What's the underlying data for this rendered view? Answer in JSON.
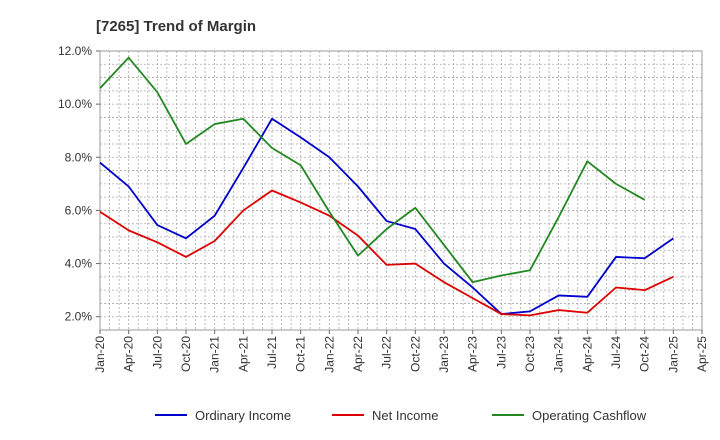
{
  "chart_data": {
    "type": "line",
    "title": "[7265]  Trend of Margin",
    "xlabel": "",
    "ylabel": "",
    "ylim": [
      1.5,
      12.0
    ],
    "yticks": [
      2.0,
      4.0,
      6.0,
      8.0,
      10.0,
      12.0
    ],
    "ytick_labels": [
      "2.0%",
      "4.0%",
      "6.0%",
      "8.0%",
      "10.0%",
      "12.0%"
    ],
    "grid": true,
    "legend_position": "bottom",
    "x": [
      "Jan-20",
      "Apr-20",
      "Jul-20",
      "Oct-20",
      "Jan-21",
      "Apr-21",
      "Jul-21",
      "Oct-21",
      "Jan-22",
      "Apr-22",
      "Jul-22",
      "Oct-22",
      "Jan-23",
      "Apr-23",
      "Jul-23",
      "Oct-23",
      "Jan-24",
      "Apr-24",
      "Jul-24",
      "Oct-24",
      "Jan-25",
      "Apr-25"
    ],
    "series": [
      {
        "name": "Ordinary Income",
        "color": "#0000cc",
        "values": [
          7.8,
          6.9,
          5.45,
          4.95,
          5.8,
          7.6,
          9.45,
          8.75,
          8.0,
          6.9,
          5.6,
          5.3,
          4.0,
          3.1,
          2.1,
          2.2,
          2.8,
          2.75,
          4.25,
          4.2,
          4.95,
          null
        ]
      },
      {
        "name": "Net Income",
        "color": "#dd0000",
        "values": [
          5.95,
          5.25,
          4.8,
          4.25,
          4.85,
          6.0,
          6.75,
          6.3,
          5.8,
          5.05,
          3.95,
          4.0,
          3.3,
          2.7,
          2.1,
          2.05,
          2.25,
          2.15,
          3.1,
          3.0,
          3.5,
          null
        ]
      },
      {
        "name": "Operating Cashflow",
        "color": "#228822",
        "values": [
          10.6,
          11.75,
          10.45,
          8.5,
          9.25,
          9.45,
          8.35,
          7.7,
          5.95,
          4.3,
          5.3,
          6.1,
          4.7,
          3.3,
          3.55,
          3.75,
          5.75,
          7.85,
          7.0,
          6.4,
          null,
          null
        ]
      }
    ]
  }
}
